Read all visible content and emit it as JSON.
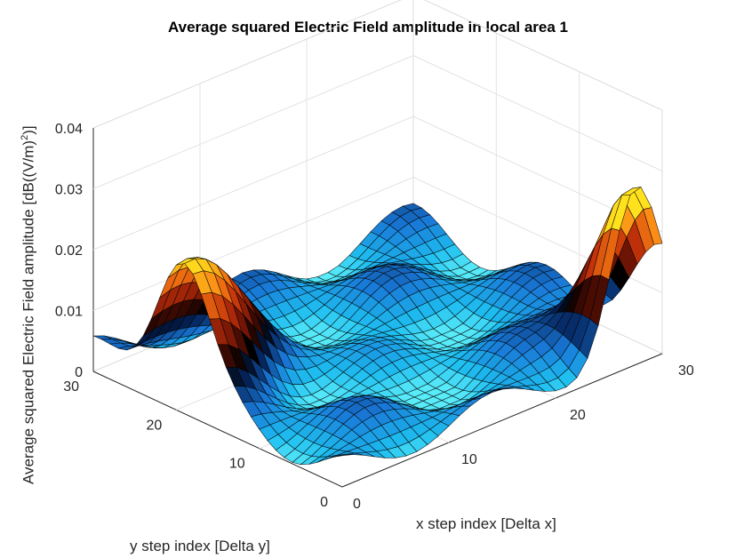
{
  "chart_data": {
    "type": "surface",
    "title": "Average squared Electric Field amplitude in local area 1",
    "xlabel": "x step index [Delta x]",
    "ylabel": "y step index [Delta y]",
    "zlabel_main": "Average squared Electric Field amplitude [dB((V/m)",
    "zlabel_sup": "2",
    "zlabel_end": ")]",
    "xlim": [
      0,
      30
    ],
    "ylim": [
      0,
      30
    ],
    "zlim": [
      0,
      0.04
    ],
    "x_ticks": [
      "0",
      "10",
      "20",
      "30"
    ],
    "y_ticks": [
      "0",
      "10",
      "20",
      "30"
    ],
    "z_ticks": [
      "0",
      "0.01",
      "0.02",
      "0.03",
      "0.04"
    ],
    "grid": true,
    "colormap": "jet-like blue to cyan, dark, orange, yellow",
    "grid_points": 30,
    "peaks": [
      {
        "x": 0,
        "y": 20,
        "z": 0.025
      },
      {
        "x": 27,
        "y": 0,
        "z": 0.024
      }
    ],
    "min_value": 0.0
  }
}
